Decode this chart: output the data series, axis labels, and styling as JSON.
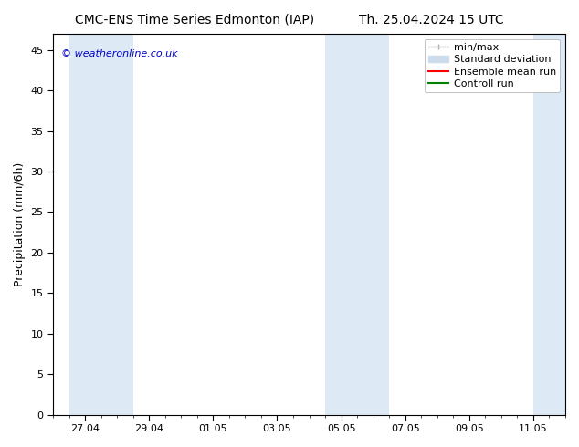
{
  "title_left": "CMC-ENS Time Series Edmonton (IAP)",
  "title_right": "Th. 25.04.2024 15 UTC",
  "ylabel": "Precipitation (mm/6h)",
  "watermark": "© weatheronline.co.uk",
  "ylim": [
    0,
    47
  ],
  "yticks": [
    0,
    5,
    10,
    15,
    20,
    25,
    30,
    35,
    40,
    45
  ],
  "xtick_labels": [
    "27.04",
    "29.04",
    "01.05",
    "03.05",
    "05.05",
    "07.05",
    "09.05",
    "11.05"
  ],
  "x_dates_numeric": [
    1.0,
    3.0,
    5.0,
    7.0,
    9.0,
    11.0,
    13.0,
    15.0
  ],
  "xlim": [
    0.0,
    16.0
  ],
  "shaded_bands": [
    {
      "x_start": 0.5,
      "x_end": 2.5,
      "color": "#ddeaf6"
    },
    {
      "x_start": 8.5,
      "x_end": 10.5,
      "color": "#ddeaf6"
    },
    {
      "x_start": 15.0,
      "x_end": 16.0,
      "color": "#ddeaf6"
    }
  ],
  "legend": {
    "min_max_color": "#b0b0b0",
    "std_dev_color": "#ccdcec",
    "ensemble_mean_color": "#ff0000",
    "control_run_color": "#008000"
  },
  "background_color": "#ffffff",
  "plot_bg_color": "#ffffff",
  "title_fontsize": 10,
  "watermark_color": "#0000cc",
  "tick_label_fontsize": 8,
  "ylabel_fontsize": 9,
  "legend_fontsize": 8
}
